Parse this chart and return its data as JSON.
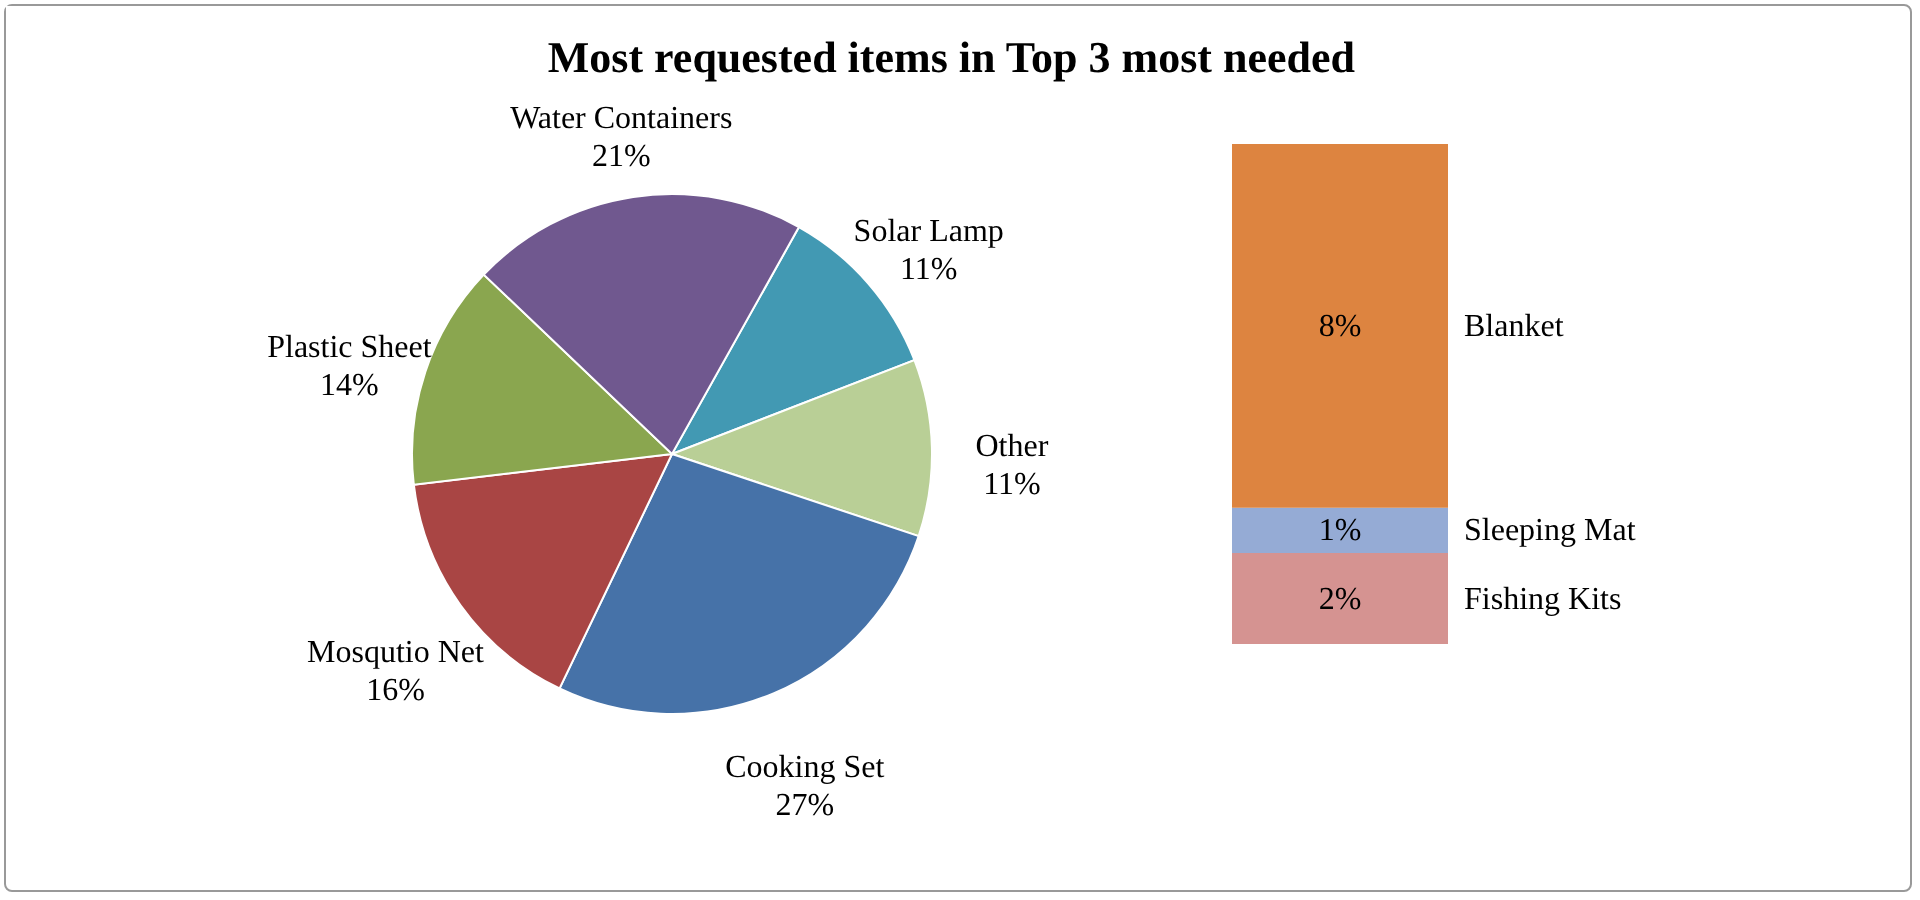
{
  "chart_data": [
    {
      "type": "pie",
      "title": "Most requested items in Top 3 most needed",
      "categories": [
        "Solar Lamp",
        "Other",
        "Cooking Set",
        "Mosqutio Net",
        "Plastic Sheet",
        "Water Containers"
      ],
      "values": [
        11,
        11,
        27,
        16,
        14,
        21
      ],
      "colors": [
        "#4299b3",
        "#b9cf96",
        "#4672a8",
        "#a94544",
        "#8aa64f",
        "#70588f"
      ],
      "value_labels": [
        "11%",
        "11%",
        "27%",
        "16%",
        "14%",
        "21%"
      ]
    },
    {
      "type": "bar",
      "stacked": true,
      "categories": [
        null
      ],
      "tick_labels": false,
      "series": [
        {
          "name": "Fishing Kits",
          "color": "#d59391",
          "values": [
            2
          ],
          "value_labels": [
            "2%"
          ]
        },
        {
          "name": "Sleeping Mat",
          "color": "#95abd5",
          "values": [
            1
          ],
          "value_labels": [
            "1%"
          ]
        },
        {
          "name": "Blanket",
          "color": "#dd8440",
          "values": [
            8
          ],
          "value_labels": [
            "8%"
          ]
        }
      ]
    }
  ]
}
